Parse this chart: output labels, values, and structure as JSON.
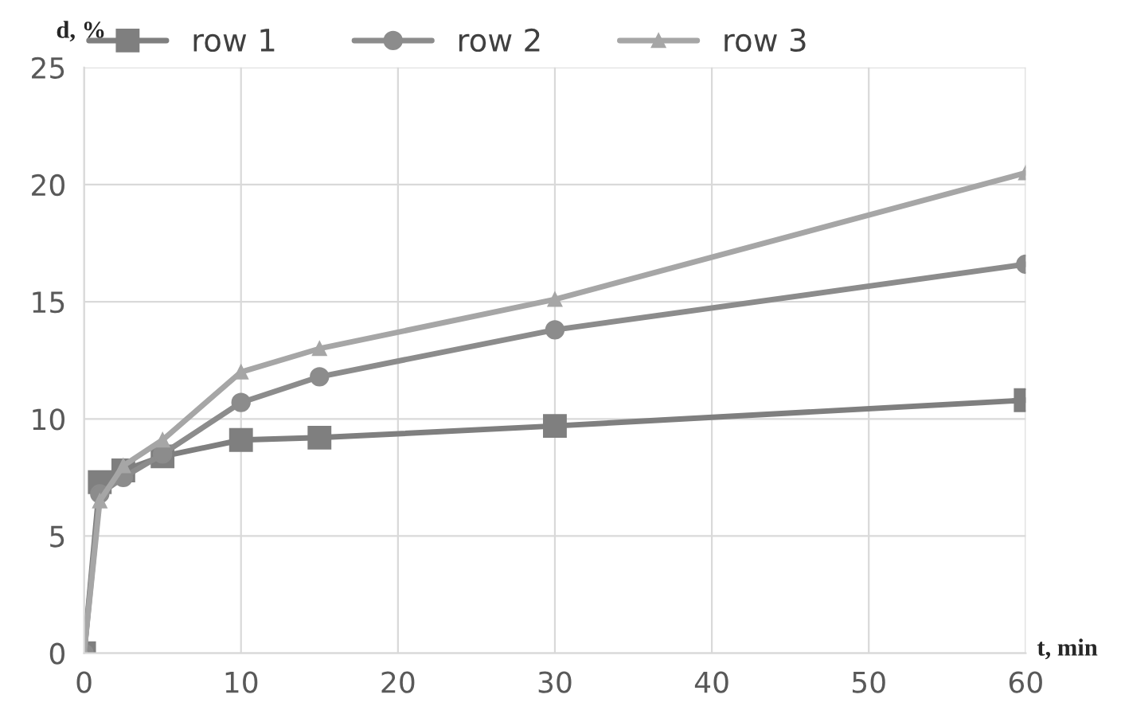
{
  "chart_data": {
    "type": "line",
    "ylabel": "d, %",
    "xlabel": "t, min",
    "x": [
      0,
      1,
      2.5,
      5,
      10,
      15,
      30,
      60
    ],
    "series": [
      {
        "name": "row 1",
        "color": "#7f7f7f",
        "marker": "square",
        "values": [
          0,
          7.3,
          7.8,
          8.4,
          9.1,
          9.2,
          9.7,
          10.8
        ]
      },
      {
        "name": "row 2",
        "color": "#8c8c8c",
        "marker": "circle",
        "values": [
          0,
          6.8,
          7.5,
          8.5,
          10.7,
          11.8,
          13.8,
          16.6
        ]
      },
      {
        "name": "row 3",
        "color": "#a6a6a6",
        "marker": "triangle",
        "values": [
          0,
          6.5,
          8.0,
          9.1,
          12.0,
          13.0,
          15.1,
          20.5
        ]
      }
    ],
    "xlim": [
      0,
      60
    ],
    "xticks": [
      0,
      10,
      20,
      30,
      40,
      50,
      60
    ],
    "ylim": [
      0,
      25
    ],
    "yticks": [
      0,
      5,
      10,
      15,
      20,
      25
    ],
    "grid": true,
    "legend": "top"
  }
}
